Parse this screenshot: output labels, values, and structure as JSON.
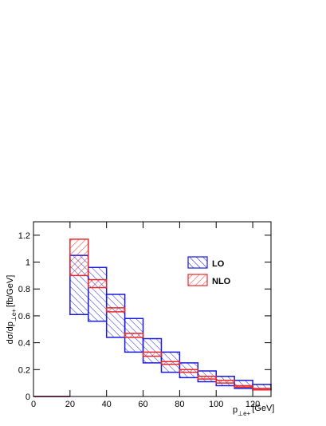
{
  "chart_data": {
    "type": "bandhistogram",
    "ylabel": {
      "main": "dσ/dp",
      "sub": "⊥e+",
      "unit": "[fb/GeV]"
    },
    "xlabel": {
      "main": "p",
      "sub": "⊥e+",
      "unit": "[GeV]"
    },
    "bins": [
      0,
      20,
      30,
      40,
      50,
      60,
      70,
      80,
      90,
      100,
      110,
      120,
      130
    ],
    "series": [
      {
        "name": "LO",
        "color": "#1a1adb",
        "hatch": "backslash",
        "lower": [
          0,
          0.61,
          0.56,
          0.44,
          0.33,
          0.25,
          0.18,
          0.14,
          0.11,
          0.08,
          0.06,
          0.05
        ],
        "upper": [
          0,
          1.05,
          0.96,
          0.76,
          0.58,
          0.43,
          0.33,
          0.25,
          0.19,
          0.15,
          0.12,
          0.09
        ]
      },
      {
        "name": "NLO",
        "color": "#e8292b",
        "hatch": "slash",
        "lower": [
          0,
          0.9,
          0.81,
          0.63,
          0.44,
          0.3,
          0.24,
          0.18,
          0.13,
          0.1,
          0.07,
          0.05
        ],
        "upper": [
          0,
          1.17,
          0.87,
          0.66,
          0.47,
          0.33,
          0.26,
          0.2,
          0.15,
          0.12,
          0.08,
          0.06
        ]
      }
    ],
    "xlim": [
      0,
      130
    ],
    "xticks": [
      0,
      20,
      40,
      60,
      80,
      100,
      120
    ],
    "ylim": [
      0,
      1.3
    ],
    "yticks": [
      0,
      0.2,
      0.4,
      0.6,
      0.8,
      1,
      1.2
    ],
    "legend": "upper-right"
  }
}
